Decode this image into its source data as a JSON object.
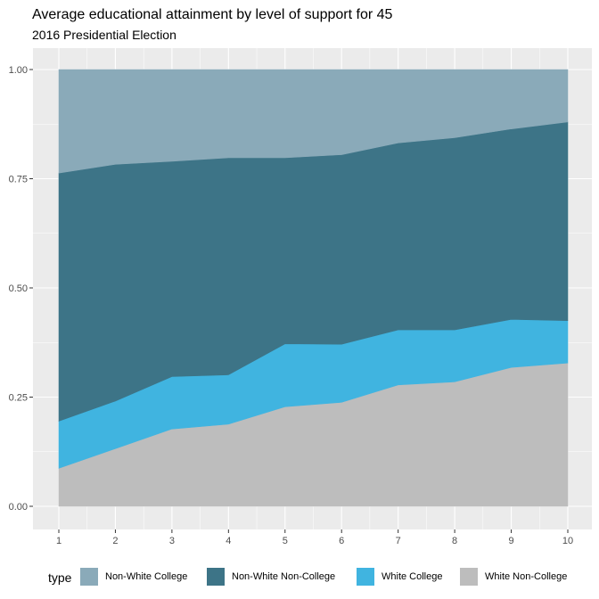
{
  "chart_data": {
    "type": "area",
    "stacked": true,
    "title": "Average educational attainment by level of support for 45",
    "subtitle": "2016 Presidential Election",
    "x": [
      1,
      2,
      3,
      4,
      5,
      6,
      7,
      8,
      9,
      10
    ],
    "x_ticks": [
      "1",
      "2",
      "3",
      "4",
      "5",
      "6",
      "7",
      "8",
      "9",
      "10"
    ],
    "y_ticks": [
      "0.00",
      "0.25",
      "0.50",
      "0.75",
      "1.00"
    ],
    "ylim": [
      0,
      1
    ],
    "grid": true,
    "legend": {
      "title": "type",
      "position": "bottom"
    },
    "series": [
      {
        "name": "Non-White College",
        "color": "#8aaab9",
        "values": [
          0.237,
          0.217,
          0.21,
          0.202,
          0.202,
          0.195,
          0.168,
          0.156,
          0.136,
          0.12
        ]
      },
      {
        "name": "Non-White Non-College",
        "color": "#3d7487",
        "values": [
          0.568,
          0.542,
          0.493,
          0.497,
          0.426,
          0.434,
          0.428,
          0.44,
          0.436,
          0.455
        ]
      },
      {
        "name": "White College",
        "color": "#40b4e0",
        "values": [
          0.108,
          0.109,
          0.12,
          0.113,
          0.144,
          0.133,
          0.126,
          0.119,
          0.11,
          0.097
        ]
      },
      {
        "name": "White Non-College",
        "color": "#bdbdbd",
        "values": [
          0.087,
          0.132,
          0.177,
          0.188,
          0.228,
          0.238,
          0.278,
          0.285,
          0.318,
          0.328
        ]
      }
    ]
  }
}
